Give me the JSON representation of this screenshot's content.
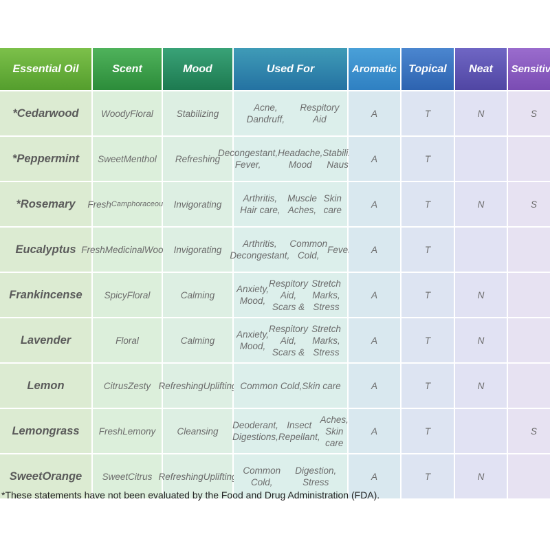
{
  "headers": [
    "Essential Oil",
    "Scent",
    "Mood",
    "Used For",
    "Aromatic",
    "Topical",
    "Neat",
    "Sensitive"
  ],
  "rows": [
    {
      "name": [
        "*Cedarwood"
      ],
      "scent": [
        "Woody",
        "Floral"
      ],
      "mood": [
        "Stabilizing"
      ],
      "used_for": [
        "Acne, Dandruff,",
        "Respitory Aid"
      ],
      "aromatic": "A",
      "topical": "T",
      "neat": "N",
      "sensitive": "S"
    },
    {
      "name": [
        "*Peppermint"
      ],
      "scent": [
        "Sweet",
        "Menthol"
      ],
      "mood": [
        "Refreshing"
      ],
      "used_for": [
        "Decongestant, Fever,",
        "Headache, Mood",
        "Stabilizer, Nausea"
      ],
      "aromatic": "A",
      "topical": "T",
      "neat": "",
      "sensitive": ""
    },
    {
      "name": [
        "*Rosemary"
      ],
      "scent": [
        "Fresh",
        "Camphoraceous"
      ],
      "mood": [
        "Invigorating"
      ],
      "used_for": [
        "Arthritis, Hair care,",
        "Muscle Aches,",
        "Skin care"
      ],
      "aromatic": "A",
      "topical": "T",
      "neat": "N",
      "sensitive": "S"
    },
    {
      "name": [
        "Eucalyptus"
      ],
      "scent": [
        "Fresh",
        "Medicinal",
        "Woody"
      ],
      "mood": [
        "Invigorating"
      ],
      "used_for": [
        "Arthritis, Decongestant,",
        "Common Cold,",
        "Fever"
      ],
      "aromatic": "A",
      "topical": "T",
      "neat": "",
      "sensitive": ""
    },
    {
      "name": [
        "Frankincense"
      ],
      "scent": [
        "Spicy",
        "Floral"
      ],
      "mood": [
        "Calming"
      ],
      "used_for": [
        "Anxiety, Mood,",
        "Respitory Aid, Scars &",
        "Stretch Marks, Stress"
      ],
      "aromatic": "A",
      "topical": "T",
      "neat": "N",
      "sensitive": ""
    },
    {
      "name": [
        "Lavender"
      ],
      "scent": [
        "Floral"
      ],
      "mood": [
        "Calming"
      ],
      "used_for": [
        "Anxiety, Mood,",
        "Respitory Aid, Scars &",
        "Stretch Marks, Stress"
      ],
      "aromatic": "A",
      "topical": "T",
      "neat": "N",
      "sensitive": ""
    },
    {
      "name": [
        "Lemon"
      ],
      "scent": [
        "Citrus",
        "Zesty"
      ],
      "mood": [
        "Refreshing",
        "Uplifting"
      ],
      "used_for": [
        "Common Cold,",
        "Skin care"
      ],
      "aromatic": "A",
      "topical": "T",
      "neat": "N",
      "sensitive": ""
    },
    {
      "name": [
        "Lemongrass"
      ],
      "scent": [
        "Fresh",
        "Lemony"
      ],
      "mood": [
        "Cleansing"
      ],
      "used_for": [
        "Deoderant, Digestions,",
        "Insect Repellant,",
        "Aches, Skin care"
      ],
      "aromatic": "A",
      "topical": "T",
      "neat": "",
      "sensitive": "S"
    },
    {
      "name": [
        "Sweet",
        "Orange"
      ],
      "scent": [
        "Sweet",
        "Citrus"
      ],
      "mood": [
        "Refreshing",
        "Uplifting"
      ],
      "used_for": [
        "Common Cold,",
        "Digestion, Stress"
      ],
      "aromatic": "A",
      "topical": "T",
      "neat": "N",
      "sensitive": ""
    }
  ],
  "footnote": "*These statements have not been evaluated by the Food and Drug Administration (FDA)."
}
